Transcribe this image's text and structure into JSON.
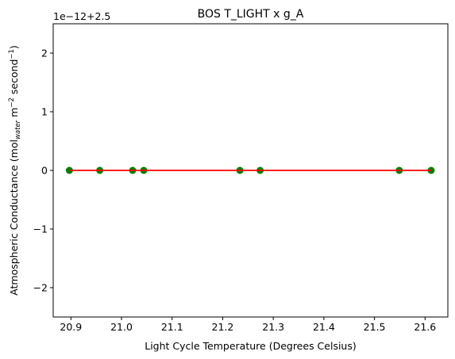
{
  "chart_data": {
    "type": "scatter",
    "title": "BOS T_LIGHT x g_A",
    "xlabel": "Light Cycle Temperature (Degrees Celsius)",
    "ylabel": {
      "main": "Atmospheric Conductance (mol",
      "sub": "water",
      "mid1": " m",
      "sup1": "−2",
      "mid2": " second",
      "sup2": "−1",
      "end": ")"
    },
    "offset_label": "1e−12+2.5",
    "xlim": [
      20.865,
      21.645
    ],
    "ylim": [
      -2.5,
      2.5
    ],
    "x_ticks": [
      20.9,
      21.0,
      21.1,
      21.2,
      21.3,
      21.4,
      21.5,
      21.6
    ],
    "x_tick_labels": [
      "20.9",
      "21.0",
      "21.1",
      "21.2",
      "21.3",
      "21.4",
      "21.5",
      "21.6"
    ],
    "y_ticks": [
      -2,
      -1,
      0,
      1,
      2
    ],
    "y_tick_labels": [
      "−2",
      "−1",
      "0",
      "1",
      "2"
    ],
    "grid": false,
    "legend": "none",
    "points": {
      "x": [
        20.897,
        20.957,
        21.022,
        21.044,
        21.234,
        21.274,
        21.549,
        21.612
      ],
      "y": [
        0,
        0,
        0,
        0,
        0,
        0,
        0,
        0
      ],
      "color": "#008000"
    },
    "fit_line": {
      "x": [
        20.897,
        21.612
      ],
      "y": [
        0,
        0
      ],
      "color": "#ff0000"
    }
  }
}
